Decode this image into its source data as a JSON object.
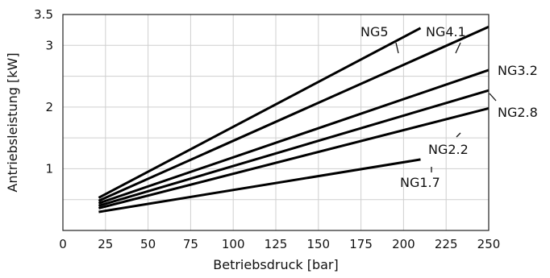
{
  "chart_data": {
    "type": "line",
    "title": "",
    "xlabel": "Betriebsdruck [bar]",
    "ylabel": "Antriebsleistung [kW]",
    "xlim": [
      0,
      250
    ],
    "ylim": [
      0,
      3.5
    ],
    "grid": true,
    "x_ticks": [
      0,
      25,
      50,
      75,
      100,
      125,
      150,
      175,
      200,
      225,
      250
    ],
    "y_ticks": [
      1,
      2,
      3,
      3.5
    ],
    "y_gridlines": [
      0.5,
      1,
      1.5,
      2,
      2.5,
      3,
      3.5
    ],
    "x_tick_labels": [
      "0",
      "25",
      "50",
      "75",
      "100",
      "125",
      "150",
      "175",
      "200",
      "225",
      "250"
    ],
    "y_tick_labels": [
      "1",
      "2",
      "3",
      "3.5"
    ],
    "series": [
      {
        "name": "NG5",
        "x": [
          21,
          210
        ],
        "y": [
          0.53,
          3.28
        ]
      },
      {
        "name": "NG4.1",
        "x": [
          21,
          250
        ],
        "y": [
          0.48,
          3.3
        ]
      },
      {
        "name": "NG3.2",
        "x": [
          21,
          250
        ],
        "y": [
          0.44,
          2.6
        ]
      },
      {
        "name": "NG2.8",
        "x": [
          21,
          250
        ],
        "y": [
          0.4,
          2.27
        ]
      },
      {
        "name": "NG2.2",
        "x": [
          21,
          250
        ],
        "y": [
          0.36,
          1.98
        ]
      },
      {
        "name": "NG1.7",
        "x": [
          21,
          210
        ],
        "y": [
          0.3,
          1.15
        ]
      }
    ],
    "line_color": "#000000"
  }
}
